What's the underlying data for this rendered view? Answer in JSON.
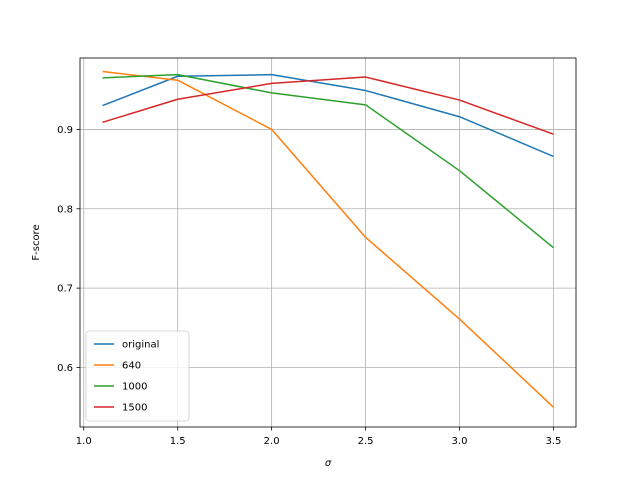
{
  "chart_data": {
    "type": "line",
    "title": "",
    "xlabel": "σ",
    "ylabel": "F-score",
    "xlim": [
      0.98,
      3.62
    ],
    "ylim": [
      0.525,
      0.99
    ],
    "xticks": [
      1.0,
      1.5,
      2.0,
      2.5,
      3.0,
      3.5
    ],
    "xtick_labels": [
      "1.0",
      "1.5",
      "2.0",
      "2.5",
      "3.0",
      "3.5"
    ],
    "yticks": [
      0.6,
      0.7,
      0.8,
      0.9
    ],
    "ytick_labels": [
      "0.6",
      "0.7",
      "0.8",
      "0.9"
    ],
    "grid": true,
    "legend_position": "bottom-left",
    "x": [
      1.1,
      1.5,
      2.0,
      2.5,
      3.0,
      3.5
    ],
    "series": [
      {
        "name": "original",
        "color": "#1f77b4",
        "values": [
          0.93,
          0.967,
          0.969,
          0.949,
          0.916,
          0.866
        ]
      },
      {
        "name": "640",
        "color": "#ff7f0e",
        "values": [
          0.973,
          0.962,
          0.9,
          0.764,
          0.661,
          0.55
        ]
      },
      {
        "name": "1000",
        "color": "#2ca02c",
        "values": [
          0.965,
          0.969,
          0.946,
          0.931,
          0.848,
          0.751
        ]
      },
      {
        "name": "1500",
        "color": "#d62728",
        "values": [
          0.909,
          0.938,
          0.958,
          0.966,
          0.937,
          0.894
        ]
      }
    ]
  }
}
